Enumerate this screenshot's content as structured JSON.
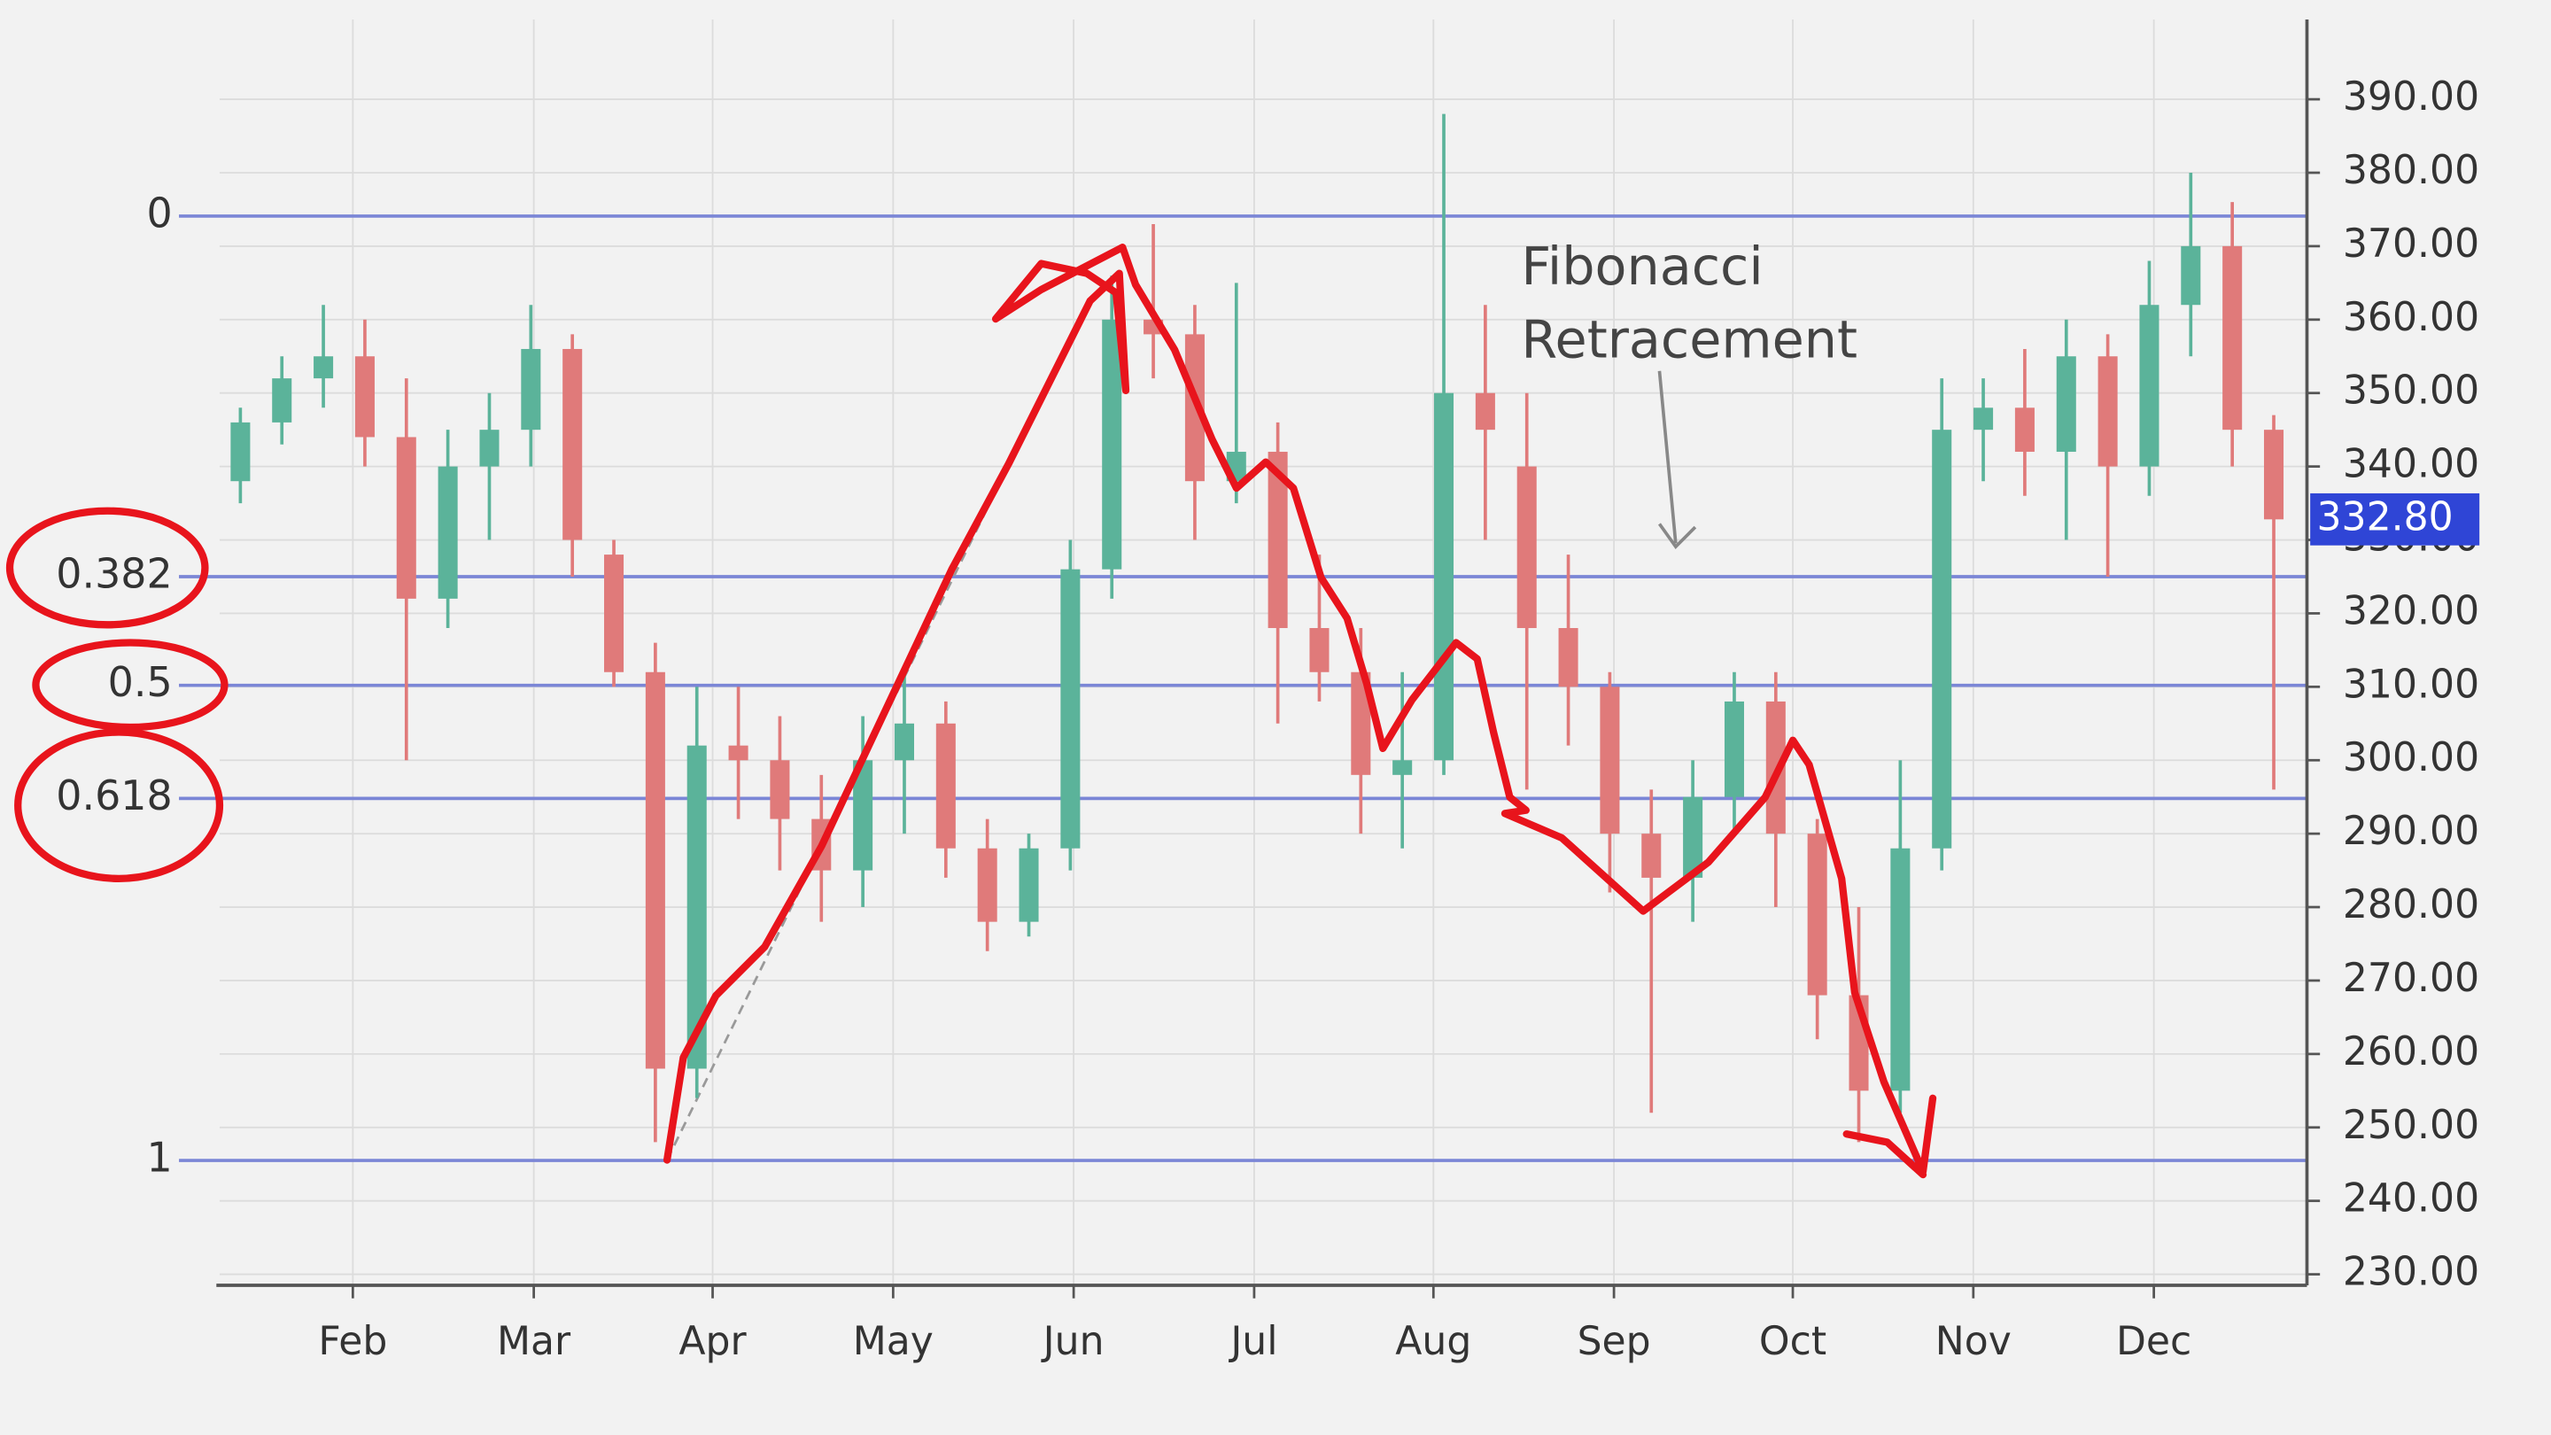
{
  "chart_data": {
    "type": "candlestick",
    "annotation": [
      "Fibonacci",
      "Retracement"
    ],
    "xlim": [
      0,
      50.3
    ],
    "xticks": [
      {
        "value": 3.21,
        "label": "Feb"
      },
      {
        "value": 7.57,
        "label": "Mar"
      },
      {
        "value": 11.88,
        "label": "Apr"
      },
      {
        "value": 16.23,
        "label": "May"
      },
      {
        "value": 20.58,
        "label": "Jun"
      },
      {
        "value": 24.93,
        "label": "Jul"
      },
      {
        "value": 29.25,
        "label": "Aug"
      },
      {
        "value": 33.6,
        "label": "Sep"
      },
      {
        "value": 37.91,
        "label": "Oct"
      },
      {
        "value": 42.26,
        "label": "Nov"
      },
      {
        "value": 46.61,
        "label": "Dec"
      }
    ],
    "ylim": [
      228.5,
      392
    ],
    "yticks": [
      {
        "value": 230,
        "label": "230.00"
      },
      {
        "value": 240,
        "label": "240.00"
      },
      {
        "value": 250,
        "label": "250.00"
      },
      {
        "value": 260,
        "label": "260.00"
      },
      {
        "value": 270,
        "label": "270.00"
      },
      {
        "value": 280,
        "label": "280.00"
      },
      {
        "value": 290,
        "label": "290.00"
      },
      {
        "value": 300,
        "label": "300.00"
      },
      {
        "value": 310,
        "label": "310.00"
      },
      {
        "value": 320,
        "label": "320.00"
      },
      {
        "value": 330,
        "label": "330.00"
      },
      {
        "value": 340,
        "label": "340.00"
      },
      {
        "value": 350,
        "label": "350.00"
      },
      {
        "value": 360,
        "label": "360.00"
      },
      {
        "value": 370,
        "label": "370.00"
      },
      {
        "value": 380,
        "label": "380.00"
      },
      {
        "value": 390,
        "label": "390.00"
      }
    ],
    "grid": true,
    "up_color": "#5bb39a",
    "down_color": "#e07a7a",
    "fib_color": "#7b86d6",
    "last_price": {
      "value": 332.8,
      "label": "332.80"
    },
    "fib_levels": [
      {
        "level": 0,
        "price": 374.1
      },
      {
        "level": 0.382,
        "price": 325.0
      },
      {
        "level": 0.5,
        "price": 310.2
      },
      {
        "level": 0.618,
        "price": 294.8
      },
      {
        "level": 1,
        "price": 245.5
      }
    ],
    "candles": {
      "x": [
        0.5,
        1.5,
        2.5,
        3.5,
        4.5,
        5.5,
        6.5,
        7.5,
        8.5,
        9.5,
        10.5,
        11.5,
        12.5,
        13.5,
        14.5,
        15.5,
        16.5,
        17.5,
        18.5,
        19.5,
        20.5,
        21.5,
        22.5,
        23.5,
        24.5,
        25.5,
        26.5,
        27.5,
        28.5,
        29.5,
        30.5,
        31.5,
        32.5,
        33.5,
        34.5,
        35.5,
        36.5,
        37.5,
        38.5,
        39.5,
        40.5,
        41.5,
        42.5,
        43.5,
        44.5,
        45.5,
        46.5,
        47.5,
        48.5,
        49.5
      ],
      "open": [
        338,
        346,
        352,
        355,
        344,
        322,
        340,
        345,
        356,
        328,
        312,
        258,
        302,
        300,
        292,
        285,
        300,
        305,
        288,
        278,
        288,
        326,
        360,
        358,
        338,
        342,
        318,
        312,
        298,
        300,
        350,
        340,
        318,
        310,
        290,
        284,
        295,
        308,
        290,
        268,
        255,
        288,
        345,
        348,
        342,
        355,
        340,
        362,
        370,
        345
      ],
      "high": [
        348,
        355,
        362,
        360,
        352,
        345,
        350,
        362,
        358,
        330,
        316,
        310,
        310,
        306,
        298,
        306,
        312,
        308,
        292,
        290,
        330,
        366,
        373,
        362,
        365,
        346,
        328,
        318,
        312,
        388,
        362,
        350,
        328,
        312,
        296,
        300,
        312,
        312,
        292,
        280,
        300,
        352,
        352,
        356,
        360,
        358,
        368,
        380,
        376,
        347
      ],
      "low": [
        335,
        343,
        348,
        340,
        300,
        318,
        330,
        340,
        325,
        310,
        248,
        254,
        292,
        285,
        278,
        280,
        290,
        284,
        274,
        276,
        285,
        322,
        352,
        330,
        335,
        305,
        308,
        290,
        288,
        298,
        330,
        296,
        302,
        282,
        252,
        278,
        290,
        280,
        262,
        248,
        252,
        285,
        338,
        336,
        330,
        325,
        336,
        355,
        340,
        296
      ],
      "close": [
        346,
        352,
        355,
        344,
        322,
        340,
        345,
        356,
        330,
        312,
        258,
        302,
        300,
        292,
        285,
        300,
        305,
        288,
        278,
        288,
        326,
        360,
        358,
        338,
        342,
        318,
        312,
        298,
        300,
        350,
        345,
        318,
        310,
        290,
        284,
        295,
        308,
        290,
        268,
        255,
        288,
        345,
        348,
        342,
        355,
        340,
        362,
        370,
        345,
        332.8
      ]
    }
  }
}
